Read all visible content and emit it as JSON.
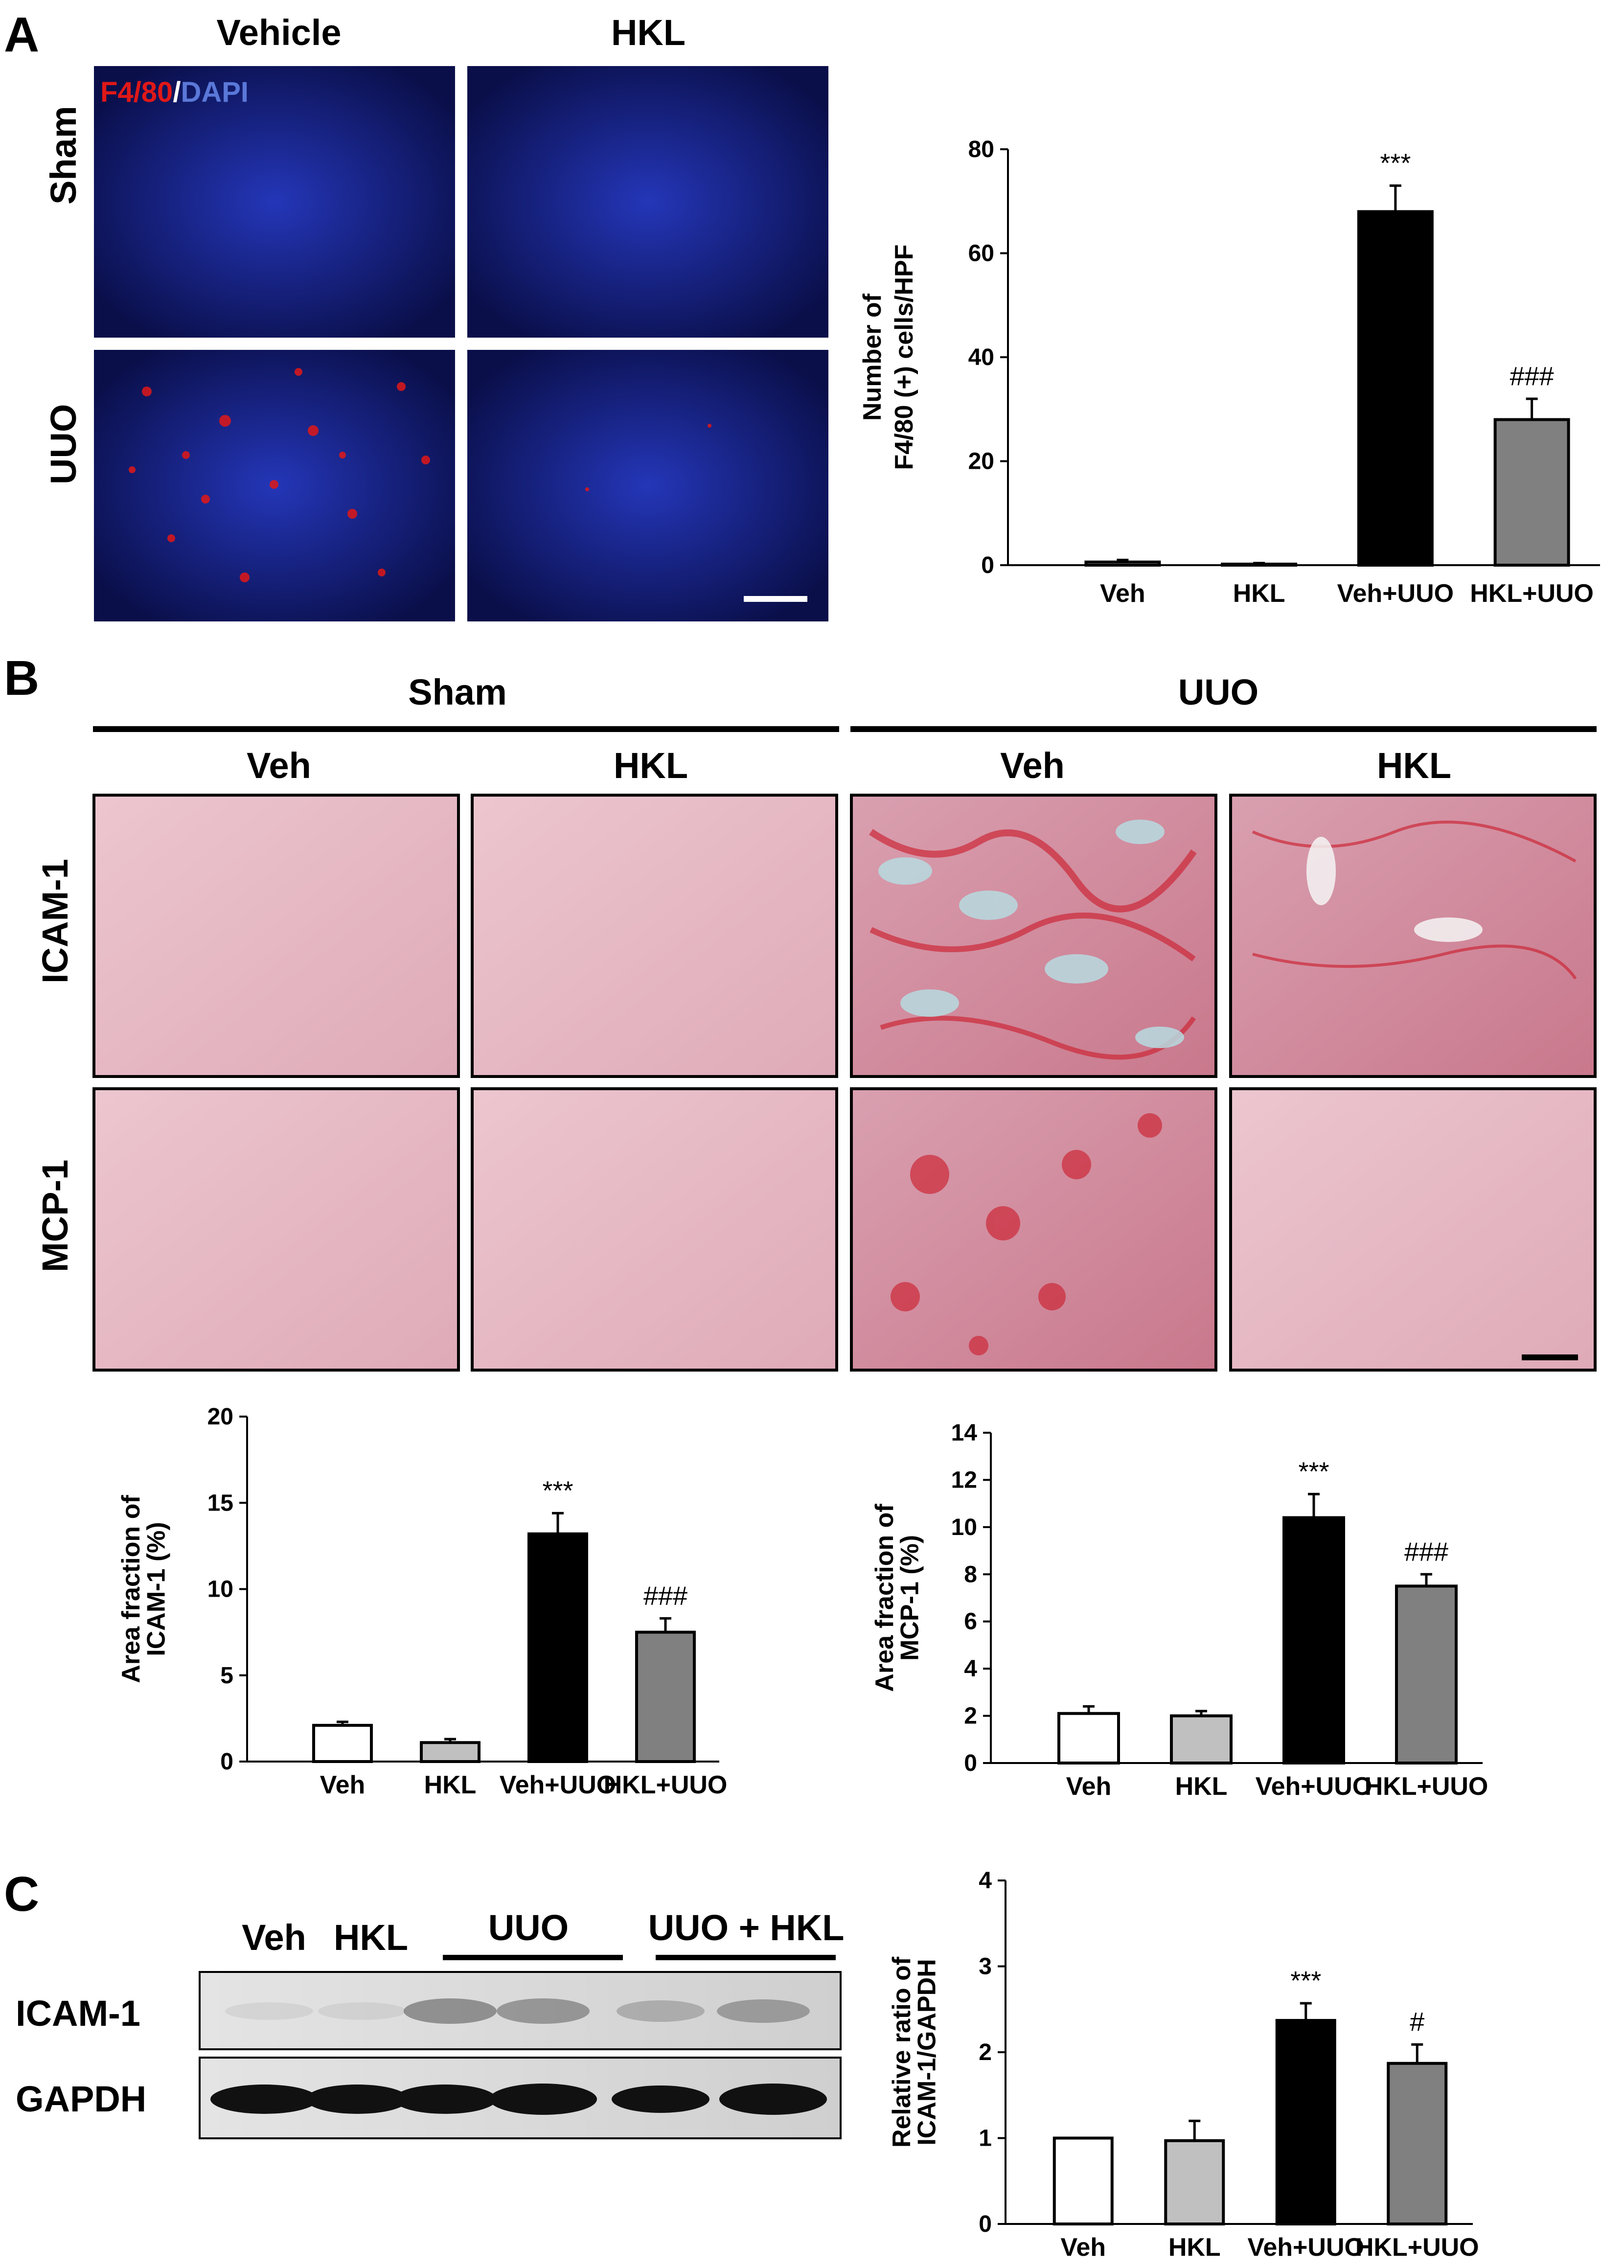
{
  "panels": {
    "a": {
      "letter": "A",
      "col_headers": [
        "Vehicle",
        "HKL"
      ],
      "row_labels": [
        "Sham",
        "UUO"
      ],
      "stain_label_red": "F4/80",
      "stain_label_sep": "/",
      "stain_label_blue": "DAPI"
    },
    "b": {
      "letter": "B",
      "group_headers": [
        "Sham",
        "UUO"
      ],
      "col_headers": [
        "Veh",
        "HKL",
        "Veh",
        "HKL"
      ],
      "row_labels": [
        "ICAM-1",
        "MCP-1"
      ]
    },
    "c": {
      "letter": "C",
      "lane_headers": [
        "Veh",
        "HKL",
        "UUO",
        "UUO + HKL"
      ],
      "row_labels": [
        "ICAM-1",
        "GAPDH"
      ]
    }
  },
  "colors": {
    "bar_veh": "#ffffff",
    "bar_hkl": "#c0c0c0",
    "bar_veh_uuo": "#000000",
    "bar_hkl_uuo": "#808080",
    "fluor_blue": "#1a2a9c",
    "fluor_red": "#e01818",
    "ihc_pink": "#e7b9c4",
    "ihc_red": "#cc2838",
    "blot_bg": "#dcdcdc",
    "blot_band": "#111111"
  },
  "chart_data": [
    {
      "type": "bar",
      "panel": "A",
      "categories": [
        "Veh",
        "HKL",
        "Veh+UUO",
        "HKL+UUO"
      ],
      "values": [
        0.6,
        0.2,
        68,
        28
      ],
      "errors": [
        0.4,
        0.2,
        5,
        4
      ],
      "significance": [
        "",
        "",
        "***",
        "###"
      ],
      "ylabel": [
        "Number of",
        "F4/80 (+) cells/HPF"
      ],
      "ylim": [
        0,
        80
      ],
      "yticks": [
        0,
        20,
        40,
        60,
        80
      ],
      "bar_colors": [
        "#ffffff",
        "#c0c0c0",
        "#000000",
        "#808080"
      ]
    },
    {
      "type": "bar",
      "panel": "B",
      "categories": [
        "Veh",
        "HKL",
        "Veh+UUO",
        "HKL+UUO"
      ],
      "values": [
        2.1,
        1.1,
        13.2,
        7.5
      ],
      "errors": [
        0.2,
        0.2,
        1.2,
        0.8
      ],
      "significance": [
        "",
        "",
        "***",
        "###"
      ],
      "ylabel": [
        "Area fraction of",
        "ICAM-1 (%)"
      ],
      "ylim": [
        0,
        20
      ],
      "yticks": [
        0,
        5,
        10,
        15,
        20
      ],
      "bar_colors": [
        "#ffffff",
        "#c0c0c0",
        "#000000",
        "#808080"
      ]
    },
    {
      "type": "bar",
      "panel": "B",
      "categories": [
        "Veh",
        "HKL",
        "Veh+UUO",
        "HKL+UUO"
      ],
      "values": [
        2.1,
        2.0,
        10.4,
        7.5
      ],
      "errors": [
        0.3,
        0.2,
        1.0,
        0.5
      ],
      "significance": [
        "",
        "",
        "***",
        "###"
      ],
      "ylabel": [
        "Area fraction of",
        "MCP-1 (%)"
      ],
      "ylim": [
        0,
        14
      ],
      "yticks": [
        0,
        2,
        4,
        6,
        8,
        10,
        12,
        14
      ],
      "bar_colors": [
        "#ffffff",
        "#c0c0c0",
        "#000000",
        "#808080"
      ]
    },
    {
      "type": "bar",
      "panel": "C",
      "categories": [
        "Veh",
        "HKL",
        "Veh+UUO",
        "HKL+UUO"
      ],
      "values": [
        1.0,
        0.97,
        2.37,
        1.87
      ],
      "errors": [
        0,
        0.23,
        0.2,
        0.22
      ],
      "significance": [
        "",
        "",
        "***",
        "#"
      ],
      "ylabel": [
        "Relative ratio of",
        "ICAM-1/GAPDH"
      ],
      "ylim": [
        0,
        4
      ],
      "yticks": [
        0,
        1,
        2,
        3,
        4
      ],
      "bar_colors": [
        "#ffffff",
        "#c0c0c0",
        "#000000",
        "#808080"
      ]
    }
  ]
}
